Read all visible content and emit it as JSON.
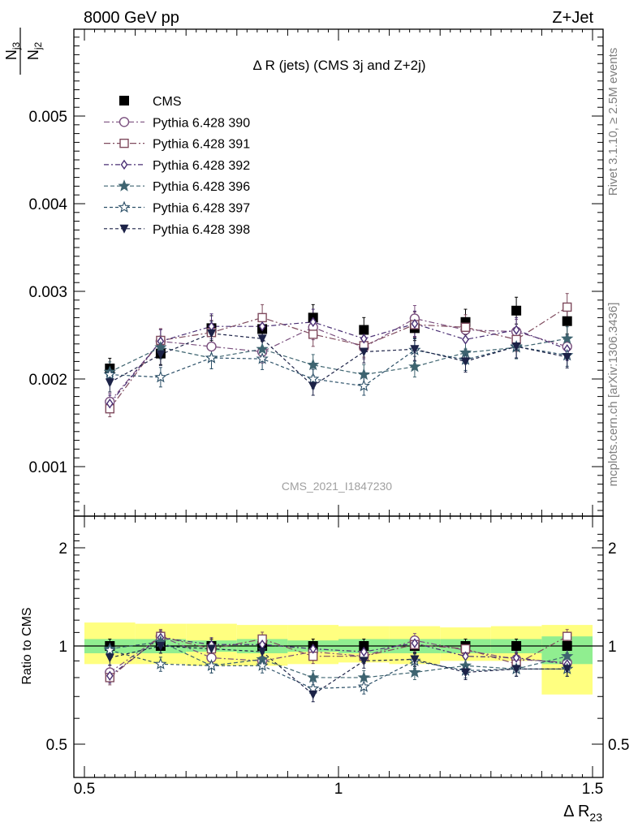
{
  "header": {
    "left": "8000 GeV pp",
    "right": "Z+Jet"
  },
  "side_labels": {
    "rivet": "Rivet 3.1.10, ≥ 2.5M events",
    "mcplots": "mcplots.cern.ch [arXiv:1306.3436]"
  },
  "watermark": "CMS_2021_I1847230",
  "ratio_ylabel": "Ratio to CMS",
  "colors": {
    "CMS": "#000000",
    "s390": "#7a4f7e",
    "s391": "#7f4b5e",
    "s392": "#4a2f74",
    "s396": "#3e6470",
    "s397": "#2c5068",
    "s398": "#1c2247",
    "band_inner": "#90ee90",
    "band_outer": "#ffff80"
  },
  "chart_data": [
    {
      "type": "scatter",
      "title": "Δ R (jets) (CMS 3j and Z+2j)",
      "xlabel": "Δ R23",
      "ylabel": "Nj3/Nj2",
      "xlim": [
        0.5,
        1.5
      ],
      "ylim": [
        0.0005,
        0.006
      ],
      "yticks": [
        "0.001",
        "0.002",
        "0.003",
        "0.004",
        "0.005"
      ],
      "legend_position": "top-left",
      "x": [
        0.55,
        0.65,
        0.75,
        0.85,
        0.95,
        1.05,
        1.15,
        1.25,
        1.35,
        1.45
      ],
      "series": [
        {
          "name": "CMS",
          "key": "CMS",
          "marker": "square-filled",
          "values": [
            0.00212,
            0.00229,
            0.00258,
            0.00257,
            0.0027,
            0.00256,
            0.00258,
            0.00265,
            0.00278,
            0.00266
          ]
        },
        {
          "name": "Pythia 6.428 390",
          "key": "s390",
          "marker": "circle-open",
          "values": [
            0.00174,
            0.00243,
            0.00237,
            0.00231,
            0.00259,
            0.00236,
            0.00269,
            0.00256,
            0.00254,
            0.00237
          ]
        },
        {
          "name": "Pythia 6.428 391",
          "key": "s391",
          "marker": "square-open",
          "values": [
            0.00166,
            0.00244,
            0.00253,
            0.0027,
            0.00251,
            0.00238,
            0.00262,
            0.00259,
            0.00245,
            0.00282
          ]
        },
        {
          "name": "Pythia 6.428 392",
          "key": "s392",
          "marker": "diamond-open",
          "values": [
            0.00172,
            0.00243,
            0.0026,
            0.0026,
            0.00265,
            0.00246,
            0.00263,
            0.00245,
            0.00256,
            0.00234
          ]
        },
        {
          "name": "Pythia 6.428 396",
          "key": "s396",
          "marker": "star-filled",
          "values": [
            0.00208,
            0.00236,
            0.00224,
            0.00234,
            0.00216,
            0.00205,
            0.00214,
            0.0023,
            0.00236,
            0.00246
          ]
        },
        {
          "name": "Pythia 6.428 397",
          "key": "s397",
          "marker": "star-open",
          "values": [
            0.00205,
            0.00202,
            0.00224,
            0.00223,
            0.002,
            0.00192,
            0.00233,
            0.00222,
            0.00237,
            0.00227
          ]
        },
        {
          "name": "Pythia 6.428 398",
          "key": "s398",
          "marker": "triangle-down-filled",
          "values": [
            0.00196,
            0.00228,
            0.00252,
            0.00246,
            0.00192,
            0.00231,
            0.00234,
            0.0022,
            0.00237,
            0.00225
          ]
        }
      ]
    },
    {
      "type": "scatter",
      "title": "",
      "xlabel": "Δ R23",
      "ylabel": "Ratio to CMS",
      "xlim": [
        0.5,
        1.5
      ],
      "ylim": [
        0.4,
        2.3
      ],
      "yticks": [
        "0.5",
        "1",
        "2"
      ],
      "xticks": [
        "0.5",
        "1",
        "1.5"
      ],
      "x": [
        0.55,
        0.65,
        0.75,
        0.85,
        0.95,
        1.05,
        1.15,
        1.25,
        1.35,
        1.45
      ],
      "bands": {
        "edges": [
          0.5,
          0.6,
          0.7,
          0.8,
          0.9,
          1.0,
          1.1,
          1.2,
          1.3,
          1.4,
          1.5
        ],
        "inner": [
          [
            0.95,
            1.05
          ],
          [
            0.95,
            1.05
          ],
          [
            0.96,
            1.04
          ],
          [
            0.95,
            1.05
          ],
          [
            0.96,
            1.04
          ],
          [
            0.95,
            1.05
          ],
          [
            0.95,
            1.05
          ],
          [
            0.95,
            1.05
          ],
          [
            0.95,
            1.05
          ],
          [
            0.88,
            1.07
          ]
        ],
        "outer": [
          [
            0.88,
            1.18
          ],
          [
            0.88,
            1.17
          ],
          [
            0.87,
            1.17
          ],
          [
            0.87,
            1.16
          ],
          [
            0.88,
            1.16
          ],
          [
            0.89,
            1.15
          ],
          [
            0.88,
            1.15
          ],
          [
            0.9,
            1.14
          ],
          [
            0.9,
            1.15
          ],
          [
            0.71,
            1.16
          ]
        ]
      },
      "series": [
        {
          "name": "CMS",
          "key": "CMS",
          "values": [
            1,
            1,
            1,
            1,
            1,
            1,
            1,
            1,
            1,
            1
          ]
        },
        {
          "name": "Pythia 6.428 390",
          "key": "s390",
          "values": [
            0.83,
            1.07,
            0.92,
            0.9,
            0.96,
            0.93,
            1.04,
            0.97,
            0.91,
            0.89
          ]
        },
        {
          "name": "Pythia 6.428 391",
          "key": "s391",
          "values": [
            0.8,
            1.07,
            0.98,
            1.05,
            0.93,
            0.93,
            1.01,
            0.98,
            0.88,
            1.07
          ]
        },
        {
          "name": "Pythia 6.428 392",
          "key": "s392",
          "values": [
            0.81,
            1.06,
            1.01,
            1.01,
            0.98,
            0.96,
            1.02,
            0.93,
            0.92,
            0.88
          ]
        },
        {
          "name": "Pythia 6.428 396",
          "key": "s396",
          "values": [
            0.98,
            1.03,
            0.87,
            0.91,
            0.8,
            0.8,
            0.83,
            0.87,
            0.85,
            0.93
          ]
        },
        {
          "name": "Pythia 6.428 397",
          "key": "s397",
          "values": [
            0.97,
            0.88,
            0.87,
            0.87,
            0.74,
            0.75,
            0.9,
            0.84,
            0.85,
            0.85
          ]
        },
        {
          "name": "Pythia 6.428 398",
          "key": "s398",
          "values": [
            0.92,
            1.0,
            0.98,
            0.96,
            0.71,
            0.9,
            0.91,
            0.83,
            0.85,
            0.85
          ]
        }
      ]
    }
  ]
}
